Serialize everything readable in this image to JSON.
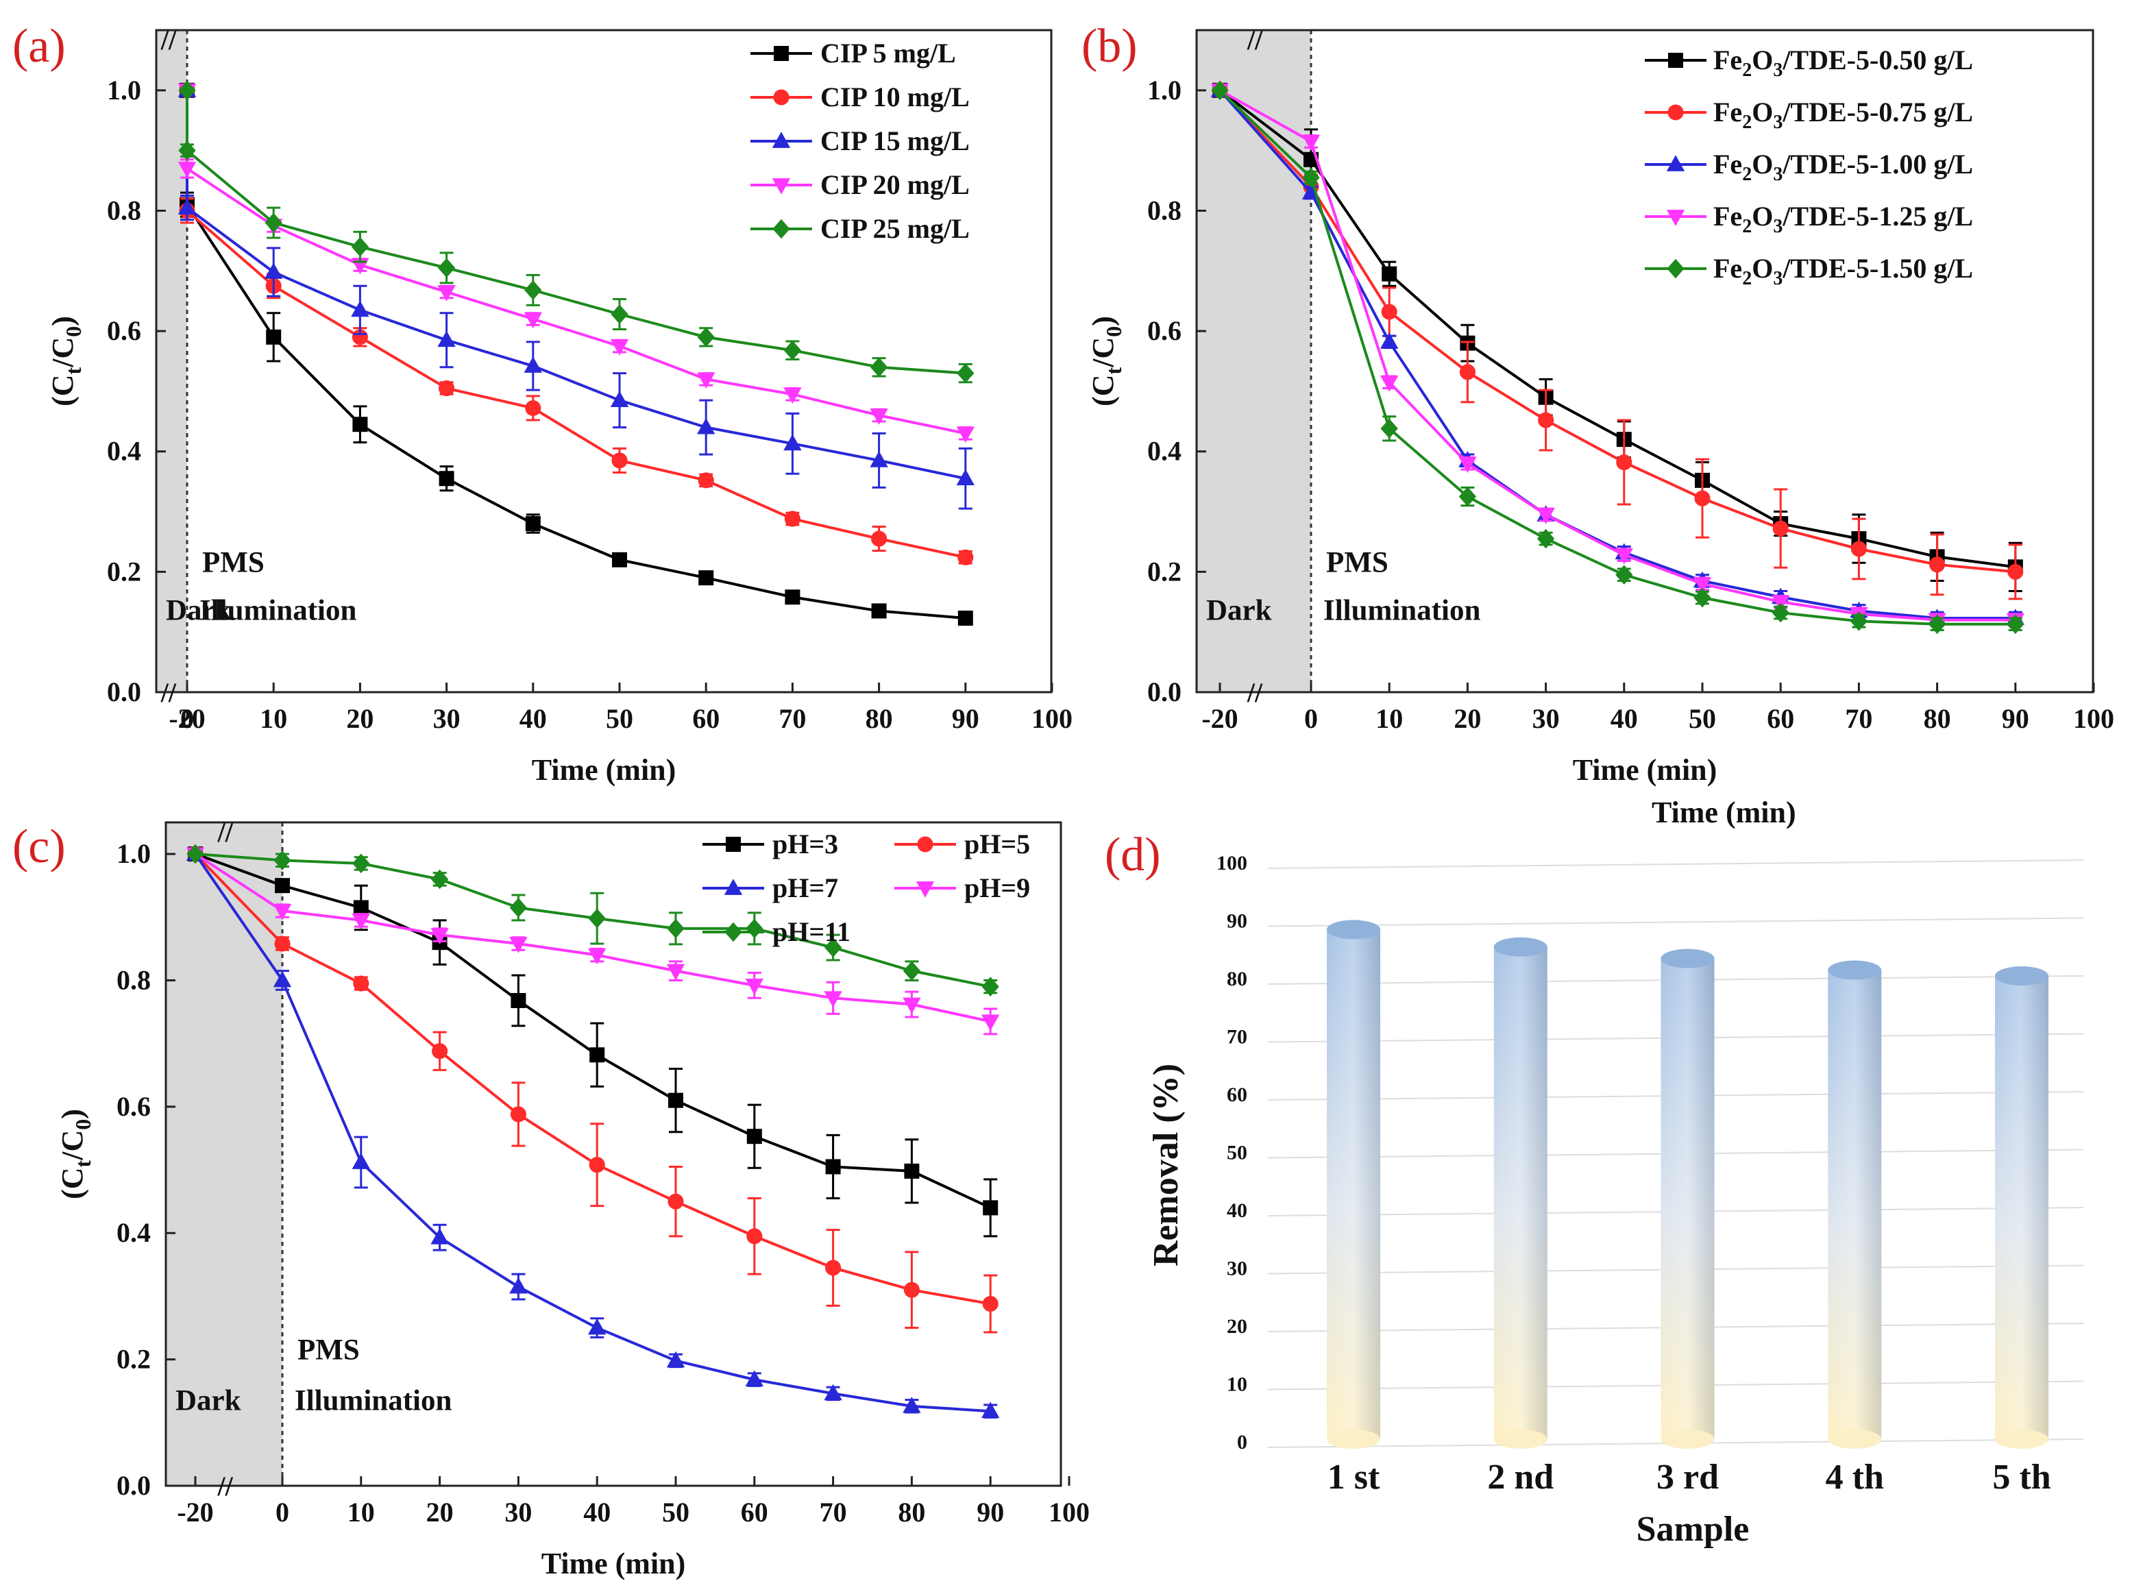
{
  "chart_data": [
    {
      "panel": "(a)",
      "type": "line",
      "xlabel": "Time (min)",
      "ylabel": "(Ct/C0)",
      "ylabel_main": "(C",
      "ylabel_sub1": "t",
      "ylabel_mid": "/C",
      "ylabel_sub2": "0",
      "ylabel_end": ")",
      "xticks": [
        "-20",
        "0",
        "10",
        "20",
        "30",
        "40",
        "50",
        "60",
        "70",
        "80",
        "90",
        "100"
      ],
      "yticks": [
        "0.0",
        "0.2",
        "0.4",
        "0.6",
        "0.8",
        "1.0"
      ],
      "ylim": [
        0,
        1.1
      ],
      "annotations": {
        "dark": "Dark",
        "pms": "PMS",
        "illumination": "Illumination",
        "break": "//"
      },
      "x": [
        -20,
        0,
        10,
        20,
        30,
        40,
        50,
        60,
        70,
        80,
        90
      ],
      "series": [
        {
          "name": "CIP 5 mg/L",
          "color": "#000000",
          "marker": "square",
          "values": [
            1.0,
            0.81,
            0.59,
            0.445,
            0.355,
            0.28,
            0.22,
            0.19,
            0.158,
            0.135,
            0.123
          ],
          "errors": [
            0,
            0.02,
            0.04,
            0.03,
            0.02,
            0.015,
            0.01,
            0.01,
            0.01,
            0.01,
            0.01
          ]
        },
        {
          "name": "CIP 10 mg/L",
          "color": "#ff2a2a",
          "marker": "circle",
          "values": [
            1.0,
            0.8,
            0.675,
            0.59,
            0.505,
            0.472,
            0.385,
            0.352,
            0.288,
            0.255,
            0.224
          ],
          "errors": [
            0,
            0.02,
            0.02,
            0.015,
            0.01,
            0.02,
            0.02,
            0.01,
            0.01,
            0.02,
            0.01
          ]
        },
        {
          "name": "CIP 15 mg/L",
          "color": "#2828d8",
          "marker": "triangle",
          "values": [
            1.0,
            0.805,
            0.698,
            0.635,
            0.585,
            0.542,
            0.485,
            0.44,
            0.413,
            0.385,
            0.355
          ],
          "errors": [
            0,
            0.02,
            0.04,
            0.04,
            0.045,
            0.04,
            0.045,
            0.045,
            0.05,
            0.045,
            0.05
          ]
        },
        {
          "name": "CIP 20 mg/L",
          "color": "#ff36ff",
          "marker": "triangle-down",
          "values": [
            1.0,
            0.87,
            0.775,
            0.71,
            0.665,
            0.62,
            0.575,
            0.52,
            0.495,
            0.46,
            0.43
          ],
          "errors": [
            0,
            0.015,
            0.01,
            0.01,
            0.01,
            0.01,
            0.01,
            0.01,
            0.01,
            0.01,
            0.01
          ]
        },
        {
          "name": "CIP 25 mg/L",
          "color": "#1c8a1c",
          "marker": "diamond",
          "values": [
            1.0,
            0.9,
            0.78,
            0.74,
            0.705,
            0.668,
            0.628,
            0.59,
            0.568,
            0.54,
            0.53
          ],
          "errors": [
            0,
            0.01,
            0.025,
            0.025,
            0.025,
            0.025,
            0.025,
            0.015,
            0.015,
            0.015,
            0.015
          ]
        }
      ]
    },
    {
      "panel": "(b)",
      "type": "line",
      "xlabel": "Time (min)",
      "ylabel": "(Ct/C0)",
      "ylabel_main": "(C",
      "ylabel_sub1": "t",
      "ylabel_mid": "/C",
      "ylabel_sub2": "0",
      "ylabel_end": ")",
      "xticks": [
        "-20",
        "0",
        "10",
        "20",
        "30",
        "40",
        "50",
        "60",
        "70",
        "80",
        "90",
        "100"
      ],
      "yticks": [
        "0.0",
        "0.2",
        "0.4",
        "0.6",
        "0.8",
        "1.0"
      ],
      "ylim": [
        0,
        1.1
      ],
      "annotations": {
        "dark": "Dark",
        "pms": "PMS",
        "illumination": "Illumination",
        "break": "//"
      },
      "x": [
        -20,
        0,
        10,
        20,
        30,
        40,
        50,
        60,
        70,
        80,
        90
      ],
      "legend_parts": {
        "prefix": "Fe",
        "sub": "2",
        "mid": "O",
        "sub2": "3"
      },
      "series": [
        {
          "name": "Fe2O3/TDE-5-0.50 g/L",
          "legend_suffix": "/TDE-5-0.50 g/L",
          "color": "#000000",
          "marker": "square",
          "values": [
            1.0,
            0.885,
            0.695,
            0.58,
            0.49,
            0.42,
            0.352,
            0.28,
            0.255,
            0.225,
            0.208
          ],
          "errors": [
            0,
            0.05,
            0.02,
            0.03,
            0.03,
            0.03,
            0.03,
            0.02,
            0.04,
            0.04,
            0.04
          ]
        },
        {
          "name": "Fe2O3/TDE-5-0.75 g/L",
          "legend_suffix": "/TDE-5-0.75 g/L",
          "color": "#ff2a2a",
          "marker": "circle",
          "values": [
            1.0,
            0.84,
            0.632,
            0.532,
            0.452,
            0.382,
            0.322,
            0.272,
            0.238,
            0.212,
            0.2
          ],
          "errors": [
            0,
            0.02,
            0.04,
            0.05,
            0.05,
            0.07,
            0.065,
            0.065,
            0.05,
            0.05,
            0.045
          ]
        },
        {
          "name": "Fe2O3/TDE-5-1.00 g/L",
          "legend_suffix": "/TDE-5-1.00 g/L",
          "color": "#2828d8",
          "marker": "triangle",
          "values": [
            1.0,
            0.83,
            0.582,
            0.385,
            0.295,
            0.232,
            0.185,
            0.158,
            0.135,
            0.123,
            0.123
          ],
          "errors": [
            0,
            0.01,
            0.01,
            0.01,
            0.01,
            0.01,
            0.01,
            0.01,
            0.01,
            0.01,
            0.01
          ]
        },
        {
          "name": "Fe2O3/TDE-5-1.25 g/L",
          "legend_suffix": "/TDE-5-1.25 g/L",
          "color": "#ff36ff",
          "marker": "triangle-down",
          "values": [
            1.0,
            0.915,
            0.515,
            0.38,
            0.295,
            0.228,
            0.18,
            0.15,
            0.13,
            0.12,
            0.12
          ],
          "errors": [
            0,
            0.01,
            0.01,
            0.01,
            0.01,
            0.01,
            0.01,
            0.01,
            0.01,
            0.01,
            0.01
          ]
        },
        {
          "name": "Fe2O3/TDE-5-1.50 g/L",
          "legend_suffix": "/TDE-5-1.50 g/L",
          "color": "#1c8a1c",
          "marker": "diamond",
          "values": [
            1.0,
            0.855,
            0.438,
            0.325,
            0.255,
            0.195,
            0.157,
            0.132,
            0.118,
            0.113,
            0.113
          ],
          "errors": [
            0,
            0.01,
            0.02,
            0.015,
            0.01,
            0.01,
            0.01,
            0.01,
            0.01,
            0.01,
            0.01
          ]
        }
      ]
    },
    {
      "panel": "(c)",
      "type": "line",
      "xlabel": "Time (min)",
      "ylabel": "(Ct/C0)",
      "ylabel_main": "(C",
      "ylabel_sub1": "t",
      "ylabel_mid": "/C",
      "ylabel_sub2": "0",
      "ylabel_end": ")",
      "xticks": [
        "-20",
        "0",
        "10",
        "20",
        "30",
        "40",
        "50",
        "60",
        "70",
        "80",
        "90",
        "100"
      ],
      "yticks": [
        "0.0",
        "0.2",
        "0.4",
        "0.6",
        "0.8",
        "1.0"
      ],
      "ylim": [
        0,
        1.05
      ],
      "annotations": {
        "dark": "Dark",
        "pms": "PMS",
        "illumination": "Illumination",
        "break": "//"
      },
      "x": [
        -20,
        0,
        10,
        20,
        30,
        40,
        50,
        60,
        70,
        80,
        90
      ],
      "series": [
        {
          "name": "pH=3",
          "color": "#000000",
          "marker": "square",
          "values": [
            1.0,
            0.95,
            0.915,
            0.86,
            0.768,
            0.682,
            0.61,
            0.553,
            0.505,
            0.498,
            0.44
          ],
          "errors": [
            0,
            0.01,
            0.035,
            0.035,
            0.04,
            0.05,
            0.05,
            0.05,
            0.05,
            0.05,
            0.045
          ]
        },
        {
          "name": "pH=5",
          "color": "#ff2a2a",
          "marker": "circle",
          "values": [
            1.0,
            0.858,
            0.795,
            0.688,
            0.588,
            0.508,
            0.45,
            0.395,
            0.345,
            0.31,
            0.288
          ],
          "errors": [
            0,
            0.01,
            0.01,
            0.03,
            0.05,
            0.065,
            0.055,
            0.06,
            0.06,
            0.06,
            0.045
          ]
        },
        {
          "name": "pH=7",
          "color": "#2828d8",
          "marker": "triangle",
          "values": [
            1.0,
            0.8,
            0.512,
            0.393,
            0.315,
            0.25,
            0.198,
            0.168,
            0.146,
            0.126,
            0.118
          ],
          "errors": [
            0,
            0.015,
            0.04,
            0.02,
            0.02,
            0.015,
            0.01,
            0.01,
            0.01,
            0.01,
            0.01
          ]
        },
        {
          "name": "pH=9",
          "color": "#ff36ff",
          "marker": "triangle-down",
          "values": [
            1.0,
            0.91,
            0.895,
            0.872,
            0.858,
            0.84,
            0.815,
            0.792,
            0.772,
            0.762,
            0.735
          ],
          "errors": [
            0,
            0.01,
            0.01,
            0.01,
            0.01,
            0.01,
            0.015,
            0.02,
            0.025,
            0.02,
            0.02
          ]
        },
        {
          "name": "pH=11",
          "color": "#1c8a1c",
          "marker": "diamond",
          "values": [
            1.0,
            0.99,
            0.985,
            0.96,
            0.915,
            0.898,
            0.882,
            0.882,
            0.852,
            0.815,
            0.79
          ],
          "errors": [
            0,
            0.01,
            0.01,
            0.01,
            0.02,
            0.04,
            0.025,
            0.025,
            0.02,
            0.015,
            0.01
          ]
        }
      ]
    },
    {
      "panel": "(d)",
      "type": "bar",
      "xlabel": "Sample",
      "ylabel": "Removal (%)",
      "categories": [
        "1 st",
        "2 nd",
        "3 rd",
        "4 th",
        "5 th"
      ],
      "values": [
        88,
        85,
        83,
        81,
        80
      ],
      "yticks": [
        "0",
        "10",
        "20",
        "30",
        "40",
        "50",
        "60",
        "70",
        "80",
        "90",
        "100"
      ],
      "ylim": [
        0,
        100
      ],
      "overlap_text": "Time (min)"
    }
  ]
}
